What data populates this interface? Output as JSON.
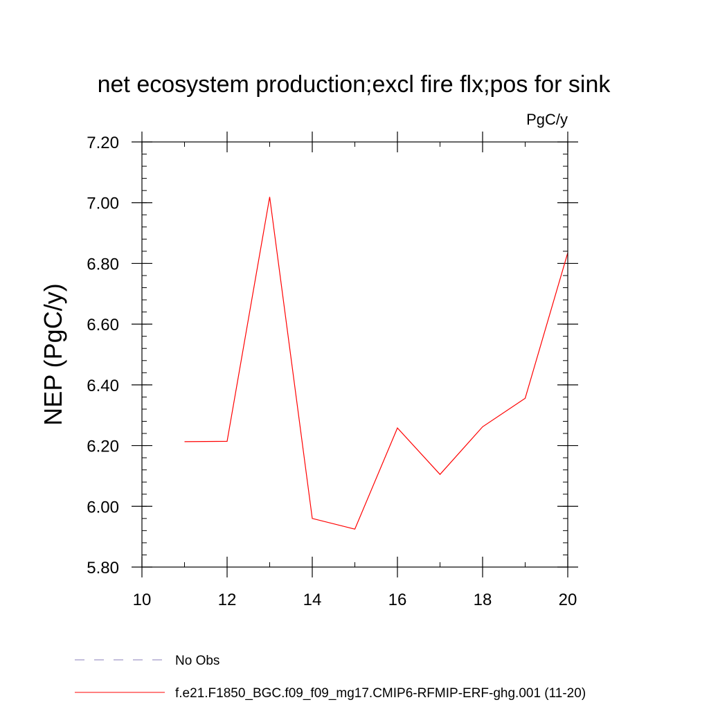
{
  "chart_data": {
    "type": "line",
    "title": "net ecosystem production;excl fire flx;pos for sink",
    "units_label": "PgC/y",
    "xlabel": "",
    "ylabel": "NEP  (PgC/y)",
    "xlim": [
      10,
      20
    ],
    "ylim": [
      5.8,
      7.2
    ],
    "x_ticks": [
      10,
      12,
      14,
      16,
      18,
      20
    ],
    "x_tick_labels": [
      "10",
      "12",
      "14",
      "16",
      "18",
      "20"
    ],
    "y_ticks": [
      5.8,
      6.0,
      6.2,
      6.4,
      6.6,
      6.8,
      7.0,
      7.2
    ],
    "y_tick_labels": [
      "5.80",
      "6.00",
      "6.20",
      "6.40",
      "6.60",
      "6.80",
      "7.00",
      "7.20"
    ],
    "x_minor_step": 1,
    "y_minor_step": 0.04,
    "grid": false,
    "legend_position": "bottom",
    "series": [
      {
        "name": "f.e21.F1850_BGC.f09_f09_mg17.CMIP6-RFMIP-ERF-ghg.001 (11-20)",
        "color": "#ff0000",
        "style": "solid",
        "x": [
          11,
          12,
          13,
          14,
          15,
          16,
          17,
          18,
          19,
          20
        ],
        "y": [
          6.213,
          6.214,
          7.019,
          5.96,
          5.925,
          6.258,
          6.105,
          6.262,
          6.356,
          6.835
        ]
      }
    ],
    "legend": [
      {
        "label": "No Obs",
        "color": "#8a7fb8",
        "style": "dashed"
      },
      {
        "label": "f.e21.F1850_BGC.f09_f09_mg17.CMIP6-RFMIP-ERF-ghg.001 (11-20)",
        "color": "#ff0000",
        "style": "solid"
      }
    ]
  }
}
